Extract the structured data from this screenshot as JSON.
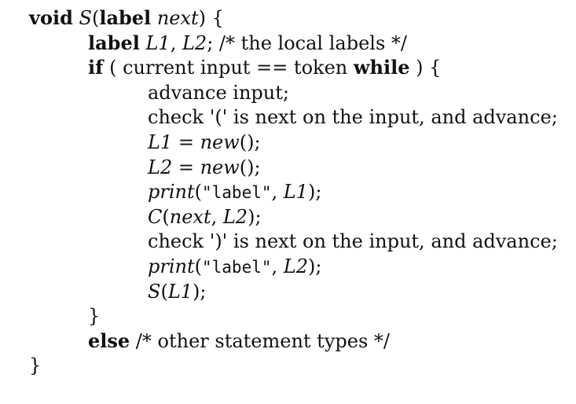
{
  "code": {
    "lines": [
      {
        "indent": 0,
        "segments": [
          {
            "t": "void",
            "s": "kw"
          },
          {
            "t": " ",
            "s": ""
          },
          {
            "t": "S",
            "s": "it"
          },
          {
            "t": "(",
            "s": ""
          },
          {
            "t": "label",
            "s": "kw"
          },
          {
            "t": " ",
            "s": ""
          },
          {
            "t": "next",
            "s": "it"
          },
          {
            "t": ") {",
            "s": ""
          }
        ]
      },
      {
        "indent": 1,
        "segments": [
          {
            "t": "label",
            "s": "kw"
          },
          {
            "t": " ",
            "s": ""
          },
          {
            "t": "L1",
            "s": "it"
          },
          {
            "t": ", ",
            "s": ""
          },
          {
            "t": "L2",
            "s": "it"
          },
          {
            "t": "; /* the local labels */",
            "s": ""
          }
        ]
      },
      {
        "indent": 1,
        "segments": [
          {
            "t": "if",
            "s": "kw"
          },
          {
            "t": " ( current input == token ",
            "s": ""
          },
          {
            "t": "while",
            "s": "kw"
          },
          {
            "t": " ) {",
            "s": ""
          }
        ]
      },
      {
        "indent": 2,
        "segments": [
          {
            "t": "advance input;",
            "s": ""
          }
        ]
      },
      {
        "indent": 2,
        "segments": [
          {
            "t": "check '(' is next on the input, and advance;",
            "s": ""
          }
        ]
      },
      {
        "indent": 2,
        "segments": [
          {
            "t": "L1",
            "s": "it"
          },
          {
            "t": " = ",
            "s": ""
          },
          {
            "t": "new",
            "s": "it"
          },
          {
            "t": "();",
            "s": ""
          }
        ]
      },
      {
        "indent": 2,
        "segments": [
          {
            "t": "L2",
            "s": "it"
          },
          {
            "t": " = ",
            "s": ""
          },
          {
            "t": "new",
            "s": "it"
          },
          {
            "t": "();",
            "s": ""
          }
        ]
      },
      {
        "indent": 2,
        "segments": [
          {
            "t": "print",
            "s": "it"
          },
          {
            "t": "(",
            "s": ""
          },
          {
            "t": "\"label\"",
            "s": "tt"
          },
          {
            "t": ", ",
            "s": ""
          },
          {
            "t": "L1",
            "s": "it"
          },
          {
            "t": ");",
            "s": ""
          }
        ]
      },
      {
        "indent": 2,
        "segments": [
          {
            "t": "C",
            "s": "it"
          },
          {
            "t": "(",
            "s": ""
          },
          {
            "t": "next",
            "s": "it"
          },
          {
            "t": ", ",
            "s": ""
          },
          {
            "t": "L2",
            "s": "it"
          },
          {
            "t": ");",
            "s": ""
          }
        ]
      },
      {
        "indent": 2,
        "segments": [
          {
            "t": "check ')' is next on the input, and advance;",
            "s": ""
          }
        ]
      },
      {
        "indent": 2,
        "segments": [
          {
            "t": "print",
            "s": "it"
          },
          {
            "t": "(",
            "s": ""
          },
          {
            "t": "\"label\"",
            "s": "tt"
          },
          {
            "t": ", ",
            "s": ""
          },
          {
            "t": "L2",
            "s": "it"
          },
          {
            "t": ");",
            "s": ""
          }
        ]
      },
      {
        "indent": 2,
        "segments": [
          {
            "t": "S",
            "s": "it"
          },
          {
            "t": "(",
            "s": ""
          },
          {
            "t": "L1",
            "s": "it"
          },
          {
            "t": ");",
            "s": ""
          }
        ]
      },
      {
        "indent": 1,
        "segments": [
          {
            "t": "}",
            "s": ""
          }
        ]
      },
      {
        "indent": 1,
        "segments": [
          {
            "t": "else",
            "s": "kw"
          },
          {
            "t": " /* other statement types */",
            "s": ""
          }
        ]
      },
      {
        "indent": 0,
        "segments": [
          {
            "t": "}",
            "s": ""
          }
        ]
      }
    ]
  }
}
